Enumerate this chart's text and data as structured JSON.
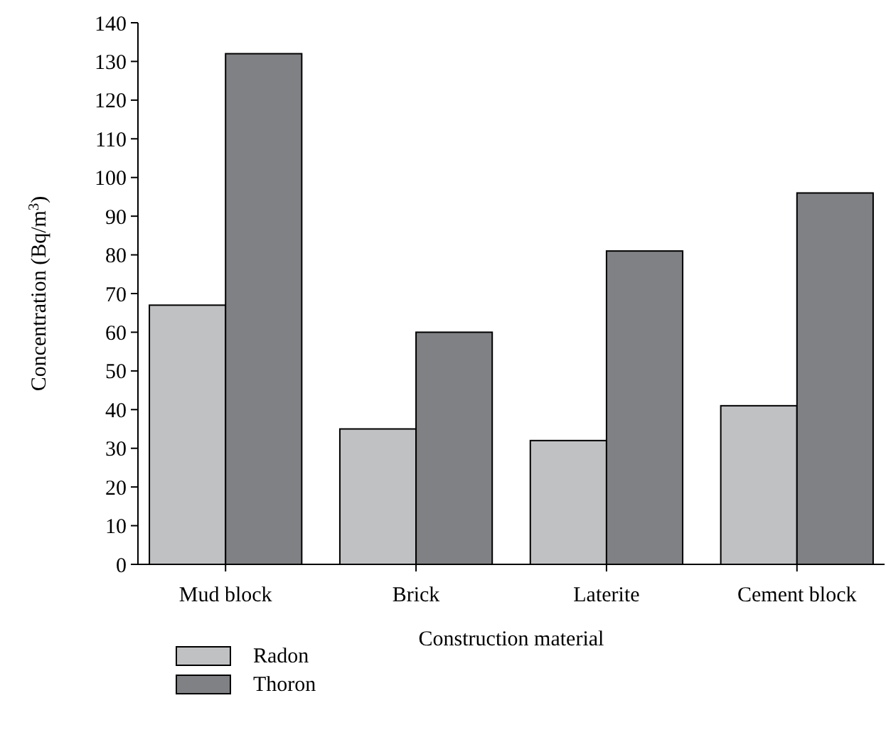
{
  "chart_data": {
    "type": "bar",
    "xlabel": "Construction material",
    "ylabel": "Concentration (Bq/m$^{3}$)",
    "categories": [
      "Mud block",
      "Brick",
      "Laterite",
      "Cement block"
    ],
    "series": [
      {
        "name": "Radon",
        "color": "#c0c1c3",
        "values": [
          67,
          35,
          32,
          41
        ]
      },
      {
        "name": "Thoron",
        "color": "#808184",
        "values": [
          132,
          60,
          81,
          96
        ]
      }
    ],
    "ylim": [
      0,
      140
    ],
    "yticks": [
      0,
      10,
      20,
      30,
      40,
      50,
      60,
      70,
      80,
      90,
      100,
      110,
      120,
      130,
      140
    ],
    "grid": false,
    "legend": "bottom left"
  }
}
